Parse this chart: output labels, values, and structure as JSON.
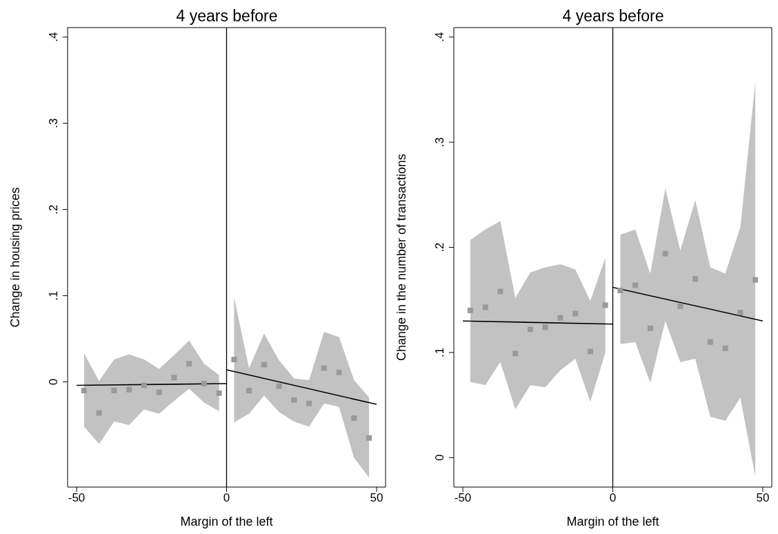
{
  "chart_data": [
    {
      "type": "scatter",
      "title": "4 years before",
      "xlabel": "Margin of the left",
      "ylabel": "Change in housing prices",
      "xlim": [
        -53,
        53
      ],
      "xticks": [
        -50,
        0,
        50
      ],
      "ylim": [
        -0.122,
        0.411
      ],
      "yticks": [
        0,
        {
          "value": 0.1,
          "label": ".1"
        },
        {
          "value": 0.2,
          "label": ".2"
        },
        {
          "value": 0.3,
          "label": ".3"
        },
        {
          "value": 0.4,
          "label": ".4"
        }
      ],
      "ref_lines": [
        {
          "axis": "x",
          "value": 0,
          "color": "#000000"
        }
      ],
      "series": [
        {
          "marker": "square",
          "color": "#999999",
          "x": [
            -47.5,
            -42.5,
            -37.5,
            -32.5,
            -27.5,
            -22.5,
            -17.5,
            -12.5,
            -7.5,
            -2.5
          ],
          "values": [
            -0.01,
            -0.036,
            -0.01,
            -0.009,
            -0.004,
            -0.012,
            0.005,
            0.021,
            -0.002,
            -0.013
          ],
          "lower": [
            -0.052,
            -0.072,
            -0.046,
            -0.05,
            -0.032,
            -0.037,
            -0.022,
            -0.008,
            -0.024,
            -0.034
          ],
          "upper": [
            0.033,
            0.001,
            0.026,
            0.032,
            0.026,
            0.015,
            0.031,
            0.048,
            0.021,
            0.008
          ]
        },
        {
          "marker": "square",
          "color": "#999999",
          "x": [
            2.5,
            7.5,
            12.5,
            17.5,
            22.5,
            27.5,
            32.5,
            37.5,
            42.5,
            47.5
          ],
          "values": [
            0.026,
            -0.01,
            0.02,
            -0.005,
            -0.021,
            -0.025,
            0.016,
            0.011,
            -0.042,
            -0.065
          ],
          "lower": [
            -0.047,
            -0.037,
            -0.016,
            -0.035,
            -0.046,
            -0.052,
            -0.025,
            -0.029,
            -0.088,
            -0.111
          ],
          "upper": [
            0.098,
            0.016,
            0.056,
            0.025,
            0.004,
            0.002,
            0.058,
            0.052,
            0.002,
            -0.018
          ]
        },
        {
          "type": "line",
          "marker": "none",
          "color": "#000000",
          "x": [
            -50,
            0
          ],
          "values": [
            -0.004,
            -0.002
          ]
        },
        {
          "type": "line",
          "marker": "none",
          "color": "#000000",
          "x": [
            0,
            50
          ],
          "values": [
            0.014,
            -0.026
          ]
        }
      ]
    },
    {
      "type": "scatter",
      "title": "4 years before",
      "xlabel": "Margin of the left",
      "ylabel": "Change in the number of transactions",
      "xlim": [
        -53,
        53
      ],
      "xticks": [
        -50,
        0,
        50
      ],
      "ylim": [
        -0.028,
        0.409
      ],
      "yticks": [
        0,
        {
          "value": 0.1,
          "label": ".1"
        },
        {
          "value": 0.2,
          "label": ".2"
        },
        {
          "value": 0.3,
          "label": ".3"
        },
        {
          "value": 0.4,
          "label": ".4"
        }
      ],
      "ref_lines": [
        {
          "axis": "x",
          "value": 0,
          "color": "#000000"
        }
      ],
      "series": [
        {
          "marker": "square",
          "color": "#999999",
          "x": [
            -47.5,
            -42.5,
            -37.5,
            -32.5,
            -27.5,
            -22.5,
            -17.5,
            -12.5,
            -7.5,
            -2.5
          ],
          "values": [
            0.14,
            0.143,
            0.158,
            0.099,
            0.122,
            0.124,
            0.133,
            0.137,
            0.101,
            0.145
          ],
          "lower": [
            0.072,
            0.069,
            0.091,
            0.046,
            0.069,
            0.067,
            0.083,
            0.094,
            0.053,
            0.1
          ],
          "upper": [
            0.207,
            0.217,
            0.225,
            0.152,
            0.176,
            0.181,
            0.184,
            0.179,
            0.149,
            0.19
          ]
        },
        {
          "marker": "square",
          "color": "#999999",
          "x": [
            2.5,
            7.5,
            12.5,
            17.5,
            22.5,
            27.5,
            32.5,
            37.5,
            42.5,
            47.5
          ],
          "values": [
            0.159,
            0.164,
            0.123,
            0.194,
            0.144,
            0.17,
            0.11,
            0.104,
            0.138,
            0.169
          ],
          "lower": [
            0.108,
            0.11,
            0.071,
            0.13,
            0.091,
            0.094,
            0.039,
            0.035,
            0.057,
            -0.018
          ],
          "upper": [
            0.212,
            0.217,
            0.175,
            0.256,
            0.197,
            0.245,
            0.181,
            0.175,
            0.219,
            0.357
          ]
        },
        {
          "type": "line",
          "marker": "none",
          "color": "#000000",
          "x": [
            -50,
            0
          ],
          "values": [
            0.13,
            0.127
          ]
        },
        {
          "type": "line",
          "marker": "none",
          "color": "#000000",
          "x": [
            0,
            50
          ],
          "values": [
            0.162,
            0.13
          ]
        }
      ]
    }
  ]
}
